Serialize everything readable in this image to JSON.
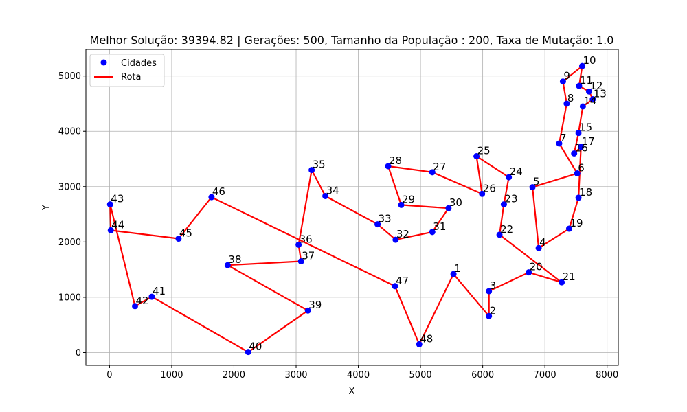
{
  "chart_data": {
    "type": "scatter",
    "title": "Melhor Solução: 39394.82 | Gerações: 500, Tamanho da População : 200, Taxa de Mutação: 1.0",
    "xlabel": "X",
    "ylabel": "Y",
    "xlim": [
      -380,
      8180
    ],
    "ylim": [
      -230,
      5480
    ],
    "xticks": [
      0,
      1000,
      2000,
      3000,
      4000,
      5000,
      6000,
      7000,
      8000
    ],
    "yticks": [
      0,
      1000,
      2000,
      3000,
      4000,
      5000
    ],
    "grid": true,
    "legend": {
      "position": "top-left",
      "entries": [
        {
          "label": "Cidades",
          "kind": "marker",
          "color": "#0000ff"
        },
        {
          "label": "Rota",
          "kind": "line",
          "color": "#ff0000"
        }
      ]
    },
    "colors": {
      "cities": "#0000ff",
      "route": "#ff0000"
    },
    "series": [
      {
        "name": "Cidades",
        "points": [
          {
            "label": "1",
            "x": 5530,
            "y": 1420
          },
          {
            "label": "2",
            "x": 6100,
            "y": 660
          },
          {
            "label": "3",
            "x": 6100,
            "y": 1110
          },
          {
            "label": "4",
            "x": 6900,
            "y": 1890
          },
          {
            "label": "5",
            "x": 6800,
            "y": 2990
          },
          {
            "label": "6",
            "x": 7520,
            "y": 3240
          },
          {
            "label": "7",
            "x": 7230,
            "y": 3780
          },
          {
            "label": "8",
            "x": 7350,
            "y": 4500
          },
          {
            "label": "9",
            "x": 7290,
            "y": 4900
          },
          {
            "label": "10",
            "x": 7600,
            "y": 5180
          },
          {
            "label": "11",
            "x": 7550,
            "y": 4820
          },
          {
            "label": "12",
            "x": 7710,
            "y": 4720
          },
          {
            "label": "13",
            "x": 7770,
            "y": 4580
          },
          {
            "label": "14",
            "x": 7610,
            "y": 4450
          },
          {
            "label": "15",
            "x": 7540,
            "y": 3970
          },
          {
            "label": "16",
            "x": 7470,
            "y": 3600
          },
          {
            "label": "17",
            "x": 7580,
            "y": 3720
          },
          {
            "label": "18",
            "x": 7540,
            "y": 2800
          },
          {
            "label": "19",
            "x": 7390,
            "y": 2240
          },
          {
            "label": "20",
            "x": 6740,
            "y": 1450
          },
          {
            "label": "21",
            "x": 7270,
            "y": 1270
          },
          {
            "label": "22",
            "x": 6270,
            "y": 2130
          },
          {
            "label": "23",
            "x": 6340,
            "y": 2680
          },
          {
            "label": "24",
            "x": 6420,
            "y": 3170
          },
          {
            "label": "25",
            "x": 5900,
            "y": 3550
          },
          {
            "label": "26",
            "x": 5990,
            "y": 2870
          },
          {
            "label": "27",
            "x": 5190,
            "y": 3260
          },
          {
            "label": "28",
            "x": 4480,
            "y": 3370
          },
          {
            "label": "29",
            "x": 4690,
            "y": 2670
          },
          {
            "label": "30",
            "x": 5450,
            "y": 2610
          },
          {
            "label": "31",
            "x": 5190,
            "y": 2180
          },
          {
            "label": "32",
            "x": 4600,
            "y": 2040
          },
          {
            "label": "33",
            "x": 4310,
            "y": 2320
          },
          {
            "label": "34",
            "x": 3470,
            "y": 2830
          },
          {
            "label": "35",
            "x": 3250,
            "y": 3300
          },
          {
            "label": "36",
            "x": 3040,
            "y": 1950
          },
          {
            "label": "37",
            "x": 3080,
            "y": 1650
          },
          {
            "label": "38",
            "x": 1900,
            "y": 1580
          },
          {
            "label": "39",
            "x": 3190,
            "y": 760
          },
          {
            "label": "40",
            "x": 2230,
            "y": 10
          },
          {
            "label": "41",
            "x": 680,
            "y": 1010
          },
          {
            "label": "42",
            "x": 410,
            "y": 840
          },
          {
            "label": "43",
            "x": 10,
            "y": 2680
          },
          {
            "label": "44",
            "x": 20,
            "y": 2210
          },
          {
            "label": "45",
            "x": 1110,
            "y": 2060
          },
          {
            "label": "46",
            "x": 1640,
            "y": 2810
          },
          {
            "label": "47",
            "x": 4590,
            "y": 1200
          },
          {
            "label": "48",
            "x": 4980,
            "y": 150
          }
        ]
      },
      {
        "name": "Rota",
        "order": [
          "1",
          "2",
          "3",
          "20",
          "21",
          "22",
          "23",
          "24",
          "25",
          "26",
          "27",
          "28",
          "29",
          "30",
          "31",
          "32",
          "33",
          "34",
          "35",
          "36",
          "37",
          "38",
          "39",
          "40",
          "41",
          "42",
          "43",
          "44",
          "45",
          "46",
          "47",
          "48",
          "1"
        ],
        "order_b": [
          "4",
          "5",
          "6",
          "7",
          "8",
          "9",
          "10",
          "11",
          "12",
          "13",
          "14",
          "15",
          "16",
          "17",
          "18",
          "19",
          "4"
        ]
      }
    ]
  }
}
